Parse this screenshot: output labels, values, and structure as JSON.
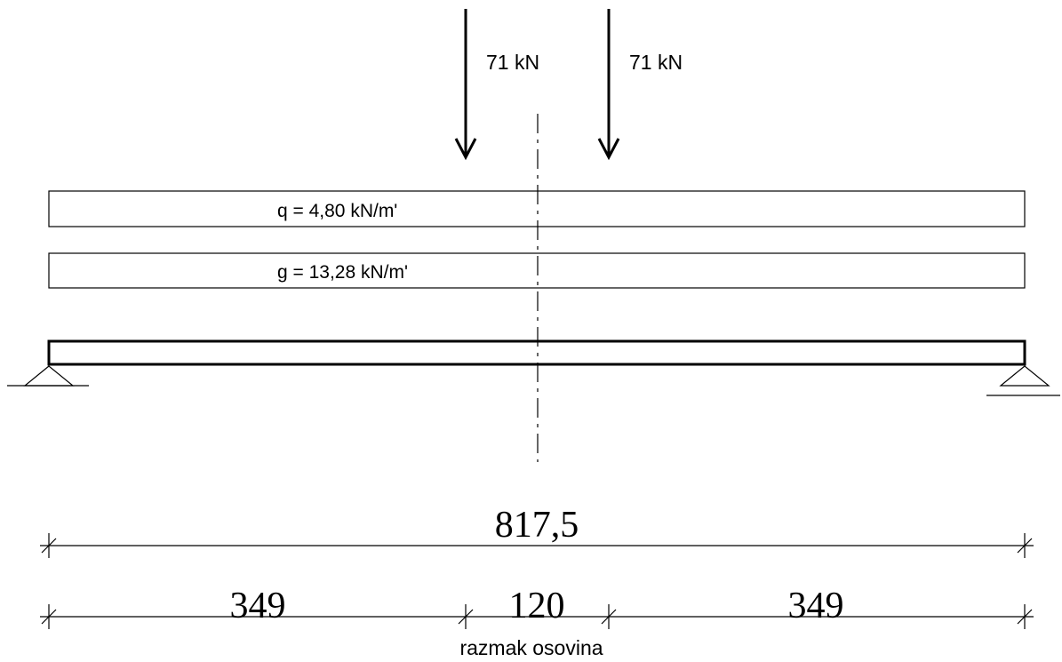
{
  "colors": {
    "stroke": "#000000",
    "background": "#ffffff"
  },
  "point_loads": [
    {
      "label": "71 kN"
    },
    {
      "label": "71 kN"
    }
  ],
  "distributed_loads": [
    {
      "label": "q = 4,80 kN/m'"
    },
    {
      "label": "g = 13,28 kN/m'"
    }
  ],
  "dimensions": {
    "total": "817,5",
    "segments": [
      "349",
      "120",
      "349"
    ],
    "note": "razmak osovina"
  }
}
